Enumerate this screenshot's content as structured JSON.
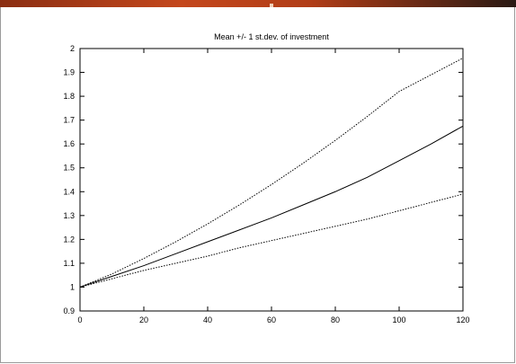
{
  "chart_data": {
    "type": "line",
    "title": "Mean +/- 1 st.dev. of investment",
    "xlabel": "",
    "ylabel": "",
    "xlim": [
      0,
      120
    ],
    "ylim": [
      0.9,
      2.0
    ],
    "x_ticks": [
      0,
      20,
      40,
      60,
      80,
      100,
      120
    ],
    "y_ticks": [
      0.9,
      1.0,
      1.1,
      1.2,
      1.3,
      1.4,
      1.5,
      1.6,
      1.7,
      1.8,
      1.9,
      2.0
    ],
    "x_tick_labels": [
      "0",
      "20",
      "40",
      "60",
      "80",
      "100",
      "120"
    ],
    "y_tick_labels": [
      "0.9",
      "1",
      "1.1",
      "1.2",
      "1.3",
      "1.4",
      "1.5",
      "1.6",
      "1.7",
      "1.8",
      "1.9",
      "2"
    ],
    "grid": false,
    "legend": "none",
    "series": [
      {
        "style": "dotted",
        "x": [
          0,
          10,
          20,
          30,
          40,
          50,
          60,
          70,
          80,
          90,
          100,
          110,
          120
        ],
        "y": [
          1.0,
          1.055,
          1.12,
          1.19,
          1.265,
          1.345,
          1.43,
          1.52,
          1.615,
          1.715,
          1.82,
          1.89,
          1.96
        ]
      },
      {
        "style": "solid",
        "x": [
          0,
          10,
          20,
          30,
          40,
          50,
          60,
          70,
          80,
          90,
          100,
          110,
          120
        ],
        "y": [
          1.0,
          1.045,
          1.09,
          1.14,
          1.19,
          1.24,
          1.29,
          1.345,
          1.4,
          1.46,
          1.53,
          1.6,
          1.675
        ]
      },
      {
        "style": "dotted",
        "x": [
          0,
          10,
          20,
          30,
          40,
          50,
          60,
          70,
          80,
          90,
          100,
          110,
          120
        ],
        "y": [
          1.0,
          1.035,
          1.07,
          1.1,
          1.13,
          1.165,
          1.195,
          1.225,
          1.255,
          1.285,
          1.32,
          1.355,
          1.39
        ]
      }
    ]
  }
}
